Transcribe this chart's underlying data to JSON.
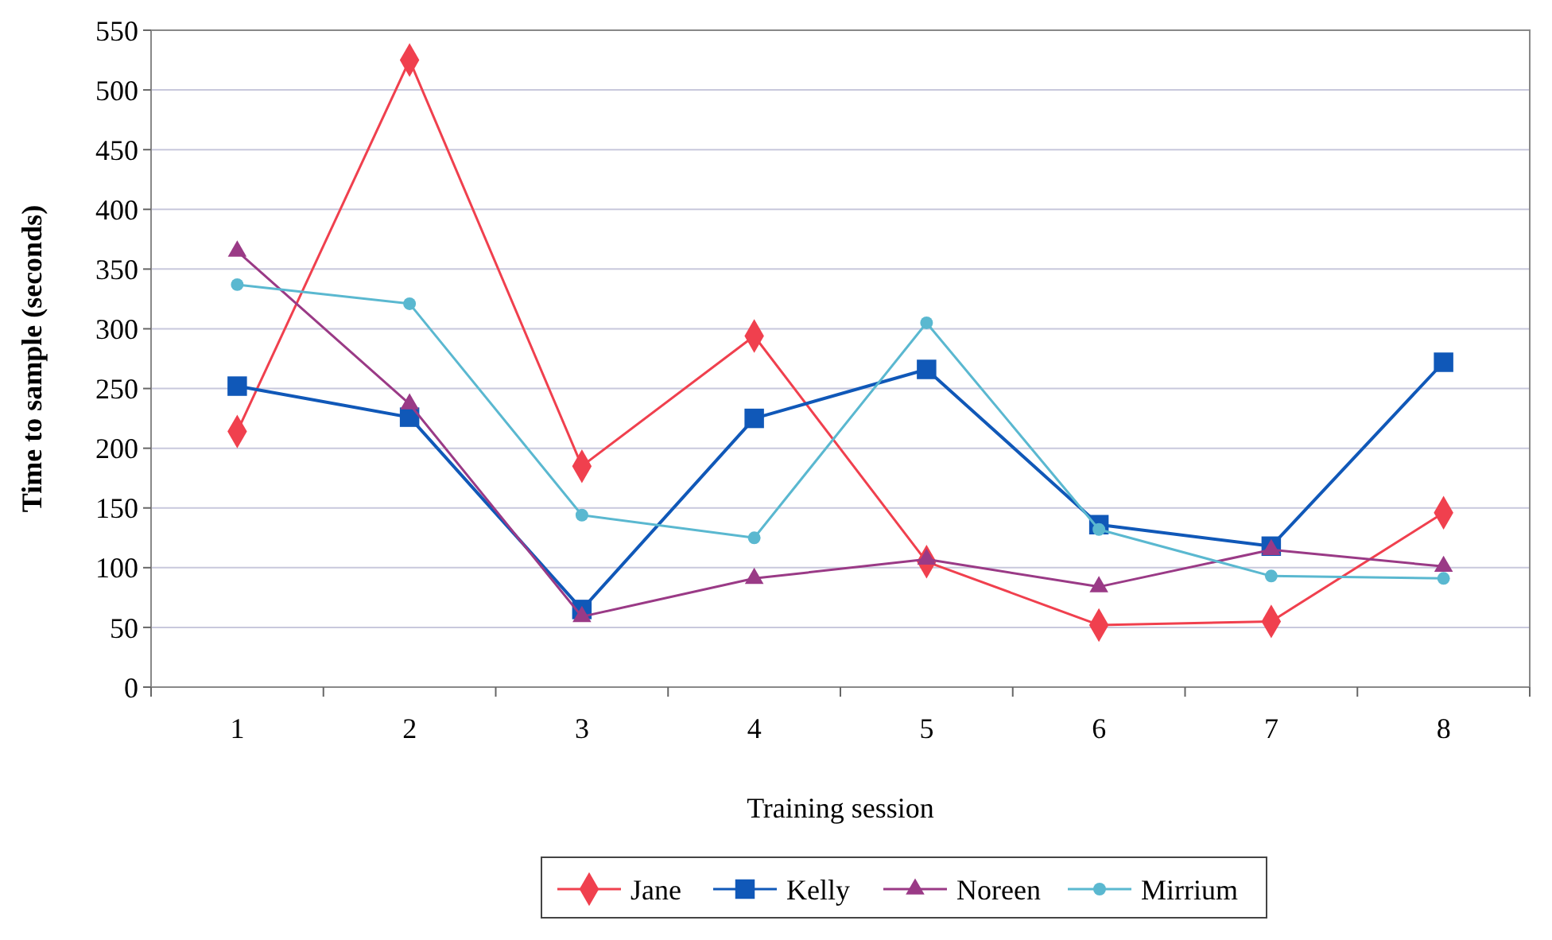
{
  "chart_data": {
    "type": "line",
    "xlabel": "Training session",
    "ylabel": "Time to sample (seconds)",
    "categories": [
      "1",
      "2",
      "3",
      "4",
      "5",
      "6",
      "7",
      "8"
    ],
    "series": [
      {
        "name": "Jane",
        "color": "#f0404e",
        "marker": "diamond",
        "values": [
          214,
          525,
          185,
          294,
          105,
          52,
          55,
          146
        ]
      },
      {
        "name": "Kelly",
        "color": "#1058b8",
        "marker": "square",
        "values": [
          252,
          226,
          65,
          225,
          266,
          136,
          118,
          272
        ]
      },
      {
        "name": "Noreen",
        "color": "#9a3a86",
        "marker": "triangle",
        "values": [
          365,
          237,
          59,
          91,
          107,
          84,
          115,
          101
        ]
      },
      {
        "name": "Mirrium",
        "color": "#5ab8d0",
        "marker": "circle",
        "values": [
          337,
          321,
          144,
          125,
          305,
          132,
          93,
          91
        ]
      }
    ],
    "ylim": [
      0,
      550
    ],
    "yticks": [
      0,
      50,
      100,
      150,
      200,
      250,
      300,
      350,
      400,
      450,
      500,
      550
    ],
    "grid": "y",
    "legend": "bottom"
  }
}
